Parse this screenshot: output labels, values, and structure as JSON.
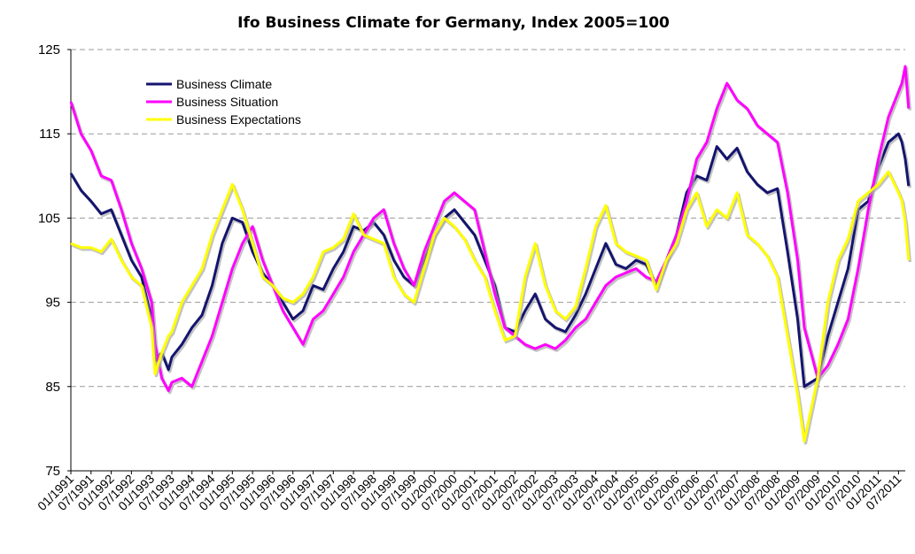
{
  "chart_data": {
    "type": "line",
    "title": "Ifo Business Climate for Germany, Index 2005=100",
    "xlabel": "",
    "ylabel": "",
    "ylim": [
      75,
      125
    ],
    "yticks": [
      75,
      85,
      95,
      105,
      115,
      125
    ],
    "grid": true,
    "legend_position": "top-left",
    "x_ticks": [
      "01/1991",
      "07/1991",
      "01/1992",
      "07/1992",
      "01/1993",
      "07/1993",
      "01/1994",
      "07/1994",
      "01/1995",
      "07/1995",
      "01/1996",
      "07/1996",
      "01/1997",
      "07/1997",
      "01/1998",
      "07/1998",
      "01/1999",
      "07/1999",
      "01/2000",
      "07/2000",
      "01/2001",
      "07/2001",
      "01/2002",
      "07/2002",
      "01/2003",
      "07/2003",
      "01/2004",
      "07/2004",
      "01/2005",
      "07/2005",
      "01/2006",
      "07/2006",
      "01/2007",
      "07/2007",
      "01/2008",
      "07/2008",
      "01/2009",
      "07/2009",
      "01/2010",
      "07/2010",
      "01/2011",
      "07/2011"
    ],
    "x_range": [
      "01/1991",
      "09/2011"
    ],
    "series": [
      {
        "name": "Business Climate",
        "color": "#14146e",
        "points": [
          [
            "01/1991",
            110.3
          ],
          [
            "04/1991",
            108.3
          ],
          [
            "07/1991",
            107.0
          ],
          [
            "10/1991",
            105.5
          ],
          [
            "01/1992",
            106.0
          ],
          [
            "04/1992",
            103.0
          ],
          [
            "07/1992",
            100.0
          ],
          [
            "10/1992",
            98.0
          ],
          [
            "01/1993",
            93.0
          ],
          [
            "02/1993",
            88.0
          ],
          [
            "04/1993",
            89.0
          ],
          [
            "06/1993",
            87.0
          ],
          [
            "07/1993",
            88.5
          ],
          [
            "10/1993",
            90.0
          ],
          [
            "01/1994",
            92.0
          ],
          [
            "04/1994",
            93.5
          ],
          [
            "07/1994",
            97.0
          ],
          [
            "10/1994",
            102.0
          ],
          [
            "01/1995",
            105.0
          ],
          [
            "04/1995",
            104.5
          ],
          [
            "07/1995",
            101.0
          ],
          [
            "10/1995",
            98.5
          ],
          [
            "01/1996",
            97.0
          ],
          [
            "04/1996",
            95.0
          ],
          [
            "07/1996",
            93.0
          ],
          [
            "10/1996",
            94.0
          ],
          [
            "01/1997",
            97.0
          ],
          [
            "04/1997",
            96.5
          ],
          [
            "07/1997",
            99.0
          ],
          [
            "10/1997",
            101.0
          ],
          [
            "01/1998",
            104.0
          ],
          [
            "04/1998",
            103.5
          ],
          [
            "07/1998",
            104.5
          ],
          [
            "10/1998",
            103.0
          ],
          [
            "01/1999",
            100.0
          ],
          [
            "04/1999",
            98.0
          ],
          [
            "07/1999",
            97.0
          ],
          [
            "10/1999",
            100.0
          ],
          [
            "01/2000",
            103.0
          ],
          [
            "04/2000",
            105.0
          ],
          [
            "07/2000",
            106.0
          ],
          [
            "10/2000",
            104.5
          ],
          [
            "01/2001",
            103.0
          ],
          [
            "04/2001",
            100.0
          ],
          [
            "07/2001",
            97.0
          ],
          [
            "10/2001",
            92.0
          ],
          [
            "01/2002",
            91.5
          ],
          [
            "04/2002",
            94.0
          ],
          [
            "07/2002",
            96.0
          ],
          [
            "10/2002",
            93.0
          ],
          [
            "01/2003",
            92.0
          ],
          [
            "04/2003",
            91.5
          ],
          [
            "07/2003",
            93.5
          ],
          [
            "10/2003",
            96.0
          ],
          [
            "01/2004",
            99.0
          ],
          [
            "04/2004",
            102.0
          ],
          [
            "07/2004",
            99.5
          ],
          [
            "10/2004",
            99.0
          ],
          [
            "01/2005",
            100.0
          ],
          [
            "04/2005",
            99.5
          ],
          [
            "07/2005",
            97.0
          ],
          [
            "10/2005",
            100.0
          ],
          [
            "01/2006",
            103.0
          ],
          [
            "04/2006",
            108.0
          ],
          [
            "07/2006",
            110.0
          ],
          [
            "10/2006",
            109.5
          ],
          [
            "01/2007",
            113.5
          ],
          [
            "04/2007",
            112.0
          ],
          [
            "07/2007",
            113.3
          ],
          [
            "10/2007",
            110.5
          ],
          [
            "01/2008",
            109.0
          ],
          [
            "04/2008",
            108.0
          ],
          [
            "07/2008",
            108.5
          ],
          [
            "10/2008",
            101.0
          ],
          [
            "01/2009",
            93.0
          ],
          [
            "03/2009",
            85.0
          ],
          [
            "07/2009",
            86.0
          ],
          [
            "10/2009",
            91.0
          ],
          [
            "01/2010",
            95.0
          ],
          [
            "04/2010",
            99.0
          ],
          [
            "07/2010",
            106.0
          ],
          [
            "10/2010",
            107.0
          ],
          [
            "01/2011",
            111.0
          ],
          [
            "04/2011",
            114.0
          ],
          [
            "07/2011",
            115.0
          ],
          [
            "08/2011",
            114.0
          ],
          [
            "09/2011",
            112.0
          ],
          [
            "10/2011",
            108.8
          ]
        ]
      },
      {
        "name": "Business Situation",
        "color": "#ff00ff",
        "points": [
          [
            "01/1991",
            118.8
          ],
          [
            "04/1991",
            115.0
          ],
          [
            "07/1991",
            113.0
          ],
          [
            "10/1991",
            110.0
          ],
          [
            "01/1992",
            109.5
          ],
          [
            "04/1992",
            106.0
          ],
          [
            "07/1992",
            102.0
          ],
          [
            "10/1992",
            99.0
          ],
          [
            "01/1993",
            95.0
          ],
          [
            "02/1993",
            90.0
          ],
          [
            "04/1993",
            86.0
          ],
          [
            "06/1993",
            84.5
          ],
          [
            "07/1993",
            85.5
          ],
          [
            "10/1993",
            86.0
          ],
          [
            "01/1994",
            85.0
          ],
          [
            "04/1994",
            88.0
          ],
          [
            "07/1994",
            91.0
          ],
          [
            "10/1994",
            95.0
          ],
          [
            "01/1995",
            99.0
          ],
          [
            "04/1995",
            102.0
          ],
          [
            "07/1995",
            104.0
          ],
          [
            "10/1995",
            100.0
          ],
          [
            "01/1996",
            97.0
          ],
          [
            "04/1996",
            94.0
          ],
          [
            "07/1996",
            92.0
          ],
          [
            "10/1996",
            90.0
          ],
          [
            "01/1997",
            93.0
          ],
          [
            "04/1997",
            94.0
          ],
          [
            "07/1997",
            96.0
          ],
          [
            "10/1997",
            98.0
          ],
          [
            "01/1998",
            101.0
          ],
          [
            "04/1998",
            103.0
          ],
          [
            "07/1998",
            105.0
          ],
          [
            "10/1998",
            106.0
          ],
          [
            "01/1999",
            102.0
          ],
          [
            "04/1999",
            99.0
          ],
          [
            "07/1999",
            97.0
          ],
          [
            "10/1999",
            101.0
          ],
          [
            "01/2000",
            104.0
          ],
          [
            "04/2000",
            107.0
          ],
          [
            "07/2000",
            108.0
          ],
          [
            "10/2000",
            107.0
          ],
          [
            "01/2001",
            106.0
          ],
          [
            "04/2001",
            101.0
          ],
          [
            "07/2001",
            96.0
          ],
          [
            "10/2001",
            92.0
          ],
          [
            "01/2002",
            91.0
          ],
          [
            "04/2002",
            90.0
          ],
          [
            "07/2002",
            89.5
          ],
          [
            "10/2002",
            90.0
          ],
          [
            "01/2003",
            89.5
          ],
          [
            "04/2003",
            90.5
          ],
          [
            "07/2003",
            92.0
          ],
          [
            "10/2003",
            93.0
          ],
          [
            "01/2004",
            95.0
          ],
          [
            "04/2004",
            97.0
          ],
          [
            "07/2004",
            98.0
          ],
          [
            "10/2004",
            98.5
          ],
          [
            "01/2005",
            99.0
          ],
          [
            "04/2005",
            98.0
          ],
          [
            "07/2005",
            97.5
          ],
          [
            "10/2005",
            100.0
          ],
          [
            "01/2006",
            103.0
          ],
          [
            "04/2006",
            107.0
          ],
          [
            "07/2006",
            112.0
          ],
          [
            "10/2006",
            114.0
          ],
          [
            "01/2007",
            118.0
          ],
          [
            "04/2007",
            121.0
          ],
          [
            "07/2007",
            119.0
          ],
          [
            "10/2007",
            118.0
          ],
          [
            "01/2008",
            116.0
          ],
          [
            "04/2008",
            115.0
          ],
          [
            "07/2008",
            114.0
          ],
          [
            "10/2008",
            108.0
          ],
          [
            "01/2009",
            100.0
          ],
          [
            "03/2009",
            92.0
          ],
          [
            "07/2009",
            86.0
          ],
          [
            "10/2009",
            87.5
          ],
          [
            "01/2010",
            90.0
          ],
          [
            "04/2010",
            93.0
          ],
          [
            "07/2010",
            99.0
          ],
          [
            "10/2010",
            106.0
          ],
          [
            "01/2011",
            112.0
          ],
          [
            "04/2011",
            117.0
          ],
          [
            "07/2011",
            120.0
          ],
          [
            "08/2011",
            121.0
          ],
          [
            "09/2011",
            123.0
          ],
          [
            "10/2011",
            118.0
          ]
        ]
      },
      {
        "name": "Business Expectations",
        "color": "#ffff00",
        "points": [
          [
            "01/1991",
            102.0
          ],
          [
            "04/1991",
            101.5
          ],
          [
            "07/1991",
            101.5
          ],
          [
            "10/1991",
            101.0
          ],
          [
            "01/1992",
            102.5
          ],
          [
            "04/1992",
            100.0
          ],
          [
            "07/1992",
            98.0
          ],
          [
            "10/1992",
            97.0
          ],
          [
            "01/1993",
            92.0
          ],
          [
            "02/1993",
            86.5
          ],
          [
            "04/1993",
            89.0
          ],
          [
            "06/1993",
            91.0
          ],
          [
            "07/1993",
            91.5
          ],
          [
            "10/1993",
            95.0
          ],
          [
            "01/1994",
            97.0
          ],
          [
            "04/1994",
            99.0
          ],
          [
            "07/1994",
            103.0
          ],
          [
            "10/1994",
            106.0
          ],
          [
            "01/1995",
            109.0
          ],
          [
            "04/1995",
            106.0
          ],
          [
            "07/1995",
            102.0
          ],
          [
            "10/1995",
            98.0
          ],
          [
            "01/1996",
            97.0
          ],
          [
            "04/1996",
            95.5
          ],
          [
            "07/1996",
            95.0
          ],
          [
            "10/1996",
            96.0
          ],
          [
            "01/1997",
            98.0
          ],
          [
            "04/1997",
            101.0
          ],
          [
            "07/1997",
            101.5
          ],
          [
            "10/1997",
            102.5
          ],
          [
            "01/1998",
            105.5
          ],
          [
            "04/1998",
            103.0
          ],
          [
            "07/1998",
            102.5
          ],
          [
            "10/1998",
            102.0
          ],
          [
            "01/1999",
            98.0
          ],
          [
            "04/1999",
            96.0
          ],
          [
            "07/1999",
            95.0
          ],
          [
            "10/1999",
            99.0
          ],
          [
            "01/2000",
            103.0
          ],
          [
            "04/2000",
            105.0
          ],
          [
            "07/2000",
            104.0
          ],
          [
            "10/2000",
            102.5
          ],
          [
            "01/2001",
            100.0
          ],
          [
            "04/2001",
            98.0
          ],
          [
            "07/2001",
            94.0
          ],
          [
            "10/2001",
            90.5
          ],
          [
            "01/2002",
            91.0
          ],
          [
            "04/2002",
            98.0
          ],
          [
            "07/2002",
            102.0
          ],
          [
            "10/2002",
            97.0
          ],
          [
            "01/2003",
            94.0
          ],
          [
            "04/2003",
            93.0
          ],
          [
            "07/2003",
            94.5
          ],
          [
            "10/2003",
            99.0
          ],
          [
            "01/2004",
            104.0
          ],
          [
            "04/2004",
            106.5
          ],
          [
            "07/2004",
            102.0
          ],
          [
            "10/2004",
            101.0
          ],
          [
            "01/2005",
            100.5
          ],
          [
            "04/2005",
            100.0
          ],
          [
            "07/2005",
            96.5
          ],
          [
            "10/2005",
            100.0
          ],
          [
            "01/2006",
            102.0
          ],
          [
            "04/2006",
            106.0
          ],
          [
            "07/2006",
            108.0
          ],
          [
            "10/2006",
            104.0
          ],
          [
            "01/2007",
            106.0
          ],
          [
            "04/2007",
            105.0
          ],
          [
            "07/2007",
            108.0
          ],
          [
            "10/2007",
            103.0
          ],
          [
            "01/2008",
            102.0
          ],
          [
            "04/2008",
            100.5
          ],
          [
            "07/2008",
            98.0
          ],
          [
            "10/2008",
            91.0
          ],
          [
            "01/2009",
            84.0
          ],
          [
            "03/2009",
            78.5
          ],
          [
            "07/2009",
            86.0
          ],
          [
            "10/2009",
            95.0
          ],
          [
            "01/2010",
            100.0
          ],
          [
            "04/2010",
            102.5
          ],
          [
            "07/2010",
            107.0
          ],
          [
            "10/2010",
            108.0
          ],
          [
            "01/2011",
            109.0
          ],
          [
            "04/2011",
            110.5
          ],
          [
            "07/2011",
            108.0
          ],
          [
            "08/2011",
            107.0
          ],
          [
            "09/2011",
            104.5
          ],
          [
            "10/2011",
            100.0
          ]
        ]
      }
    ]
  }
}
